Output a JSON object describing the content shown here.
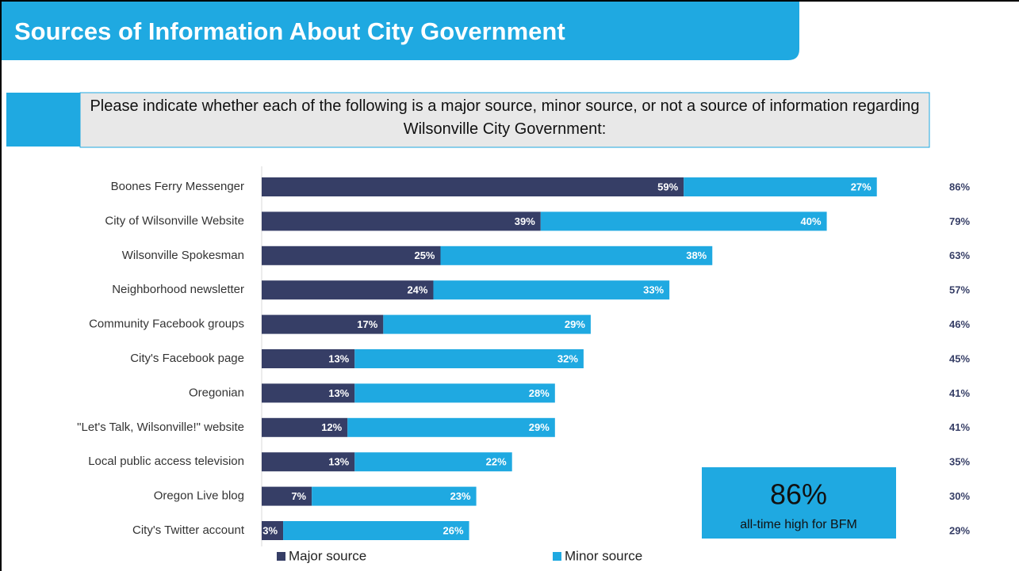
{
  "chart_data": {
    "type": "stacked-bar",
    "title": "Sources of Information About City Government",
    "subtitle": "Please indicate whether each of the following is a major source, minor source, or not a source of information regarding Wilsonville City Government:",
    "categories": [
      "Boones Ferry Messenger",
      "City of Wilsonville Website",
      "Wilsonville Spokesman",
      "Neighborhood newsletter",
      "Community Facebook groups",
      "City's Facebook page",
      "Oregonian",
      "\"Let's Talk, Wilsonville!\" website",
      "Local public access television",
      "Oregon Live blog",
      "City's Twitter account"
    ],
    "series": [
      {
        "name": "Major source",
        "color": "#363e66",
        "values": [
          59,
          39,
          25,
          24,
          17,
          13,
          13,
          12,
          13,
          7,
          3
        ],
        "value_labels": [
          "59%",
          "39%",
          "25%",
          "24%",
          "17%",
          "13%",
          "13%",
          "12%",
          "13%",
          "7%",
          "3%"
        ]
      },
      {
        "name": "Minor source",
        "color": "#1fa9e1",
        "values": [
          27,
          40,
          38,
          33,
          29,
          32,
          28,
          29,
          22,
          23,
          26
        ],
        "value_labels": [
          "27%",
          "40%",
          "38%",
          "33%",
          "29%",
          "32%",
          "28%",
          "29%",
          "22%",
          "23%",
          "26%"
        ]
      }
    ],
    "totals": {
      "values": [
        86,
        79,
        63,
        57,
        46,
        45,
        41,
        41,
        35,
        30,
        29
      ],
      "value_labels": [
        "86%",
        "79%",
        "63%",
        "57%",
        "46%",
        "45%",
        "41%",
        "41%",
        "35%",
        "30%",
        "29%"
      ]
    },
    "xlim": [
      0,
      100
    ],
    "annotation": {
      "headline": "86%",
      "text": "all-time high for BFM"
    }
  }
}
